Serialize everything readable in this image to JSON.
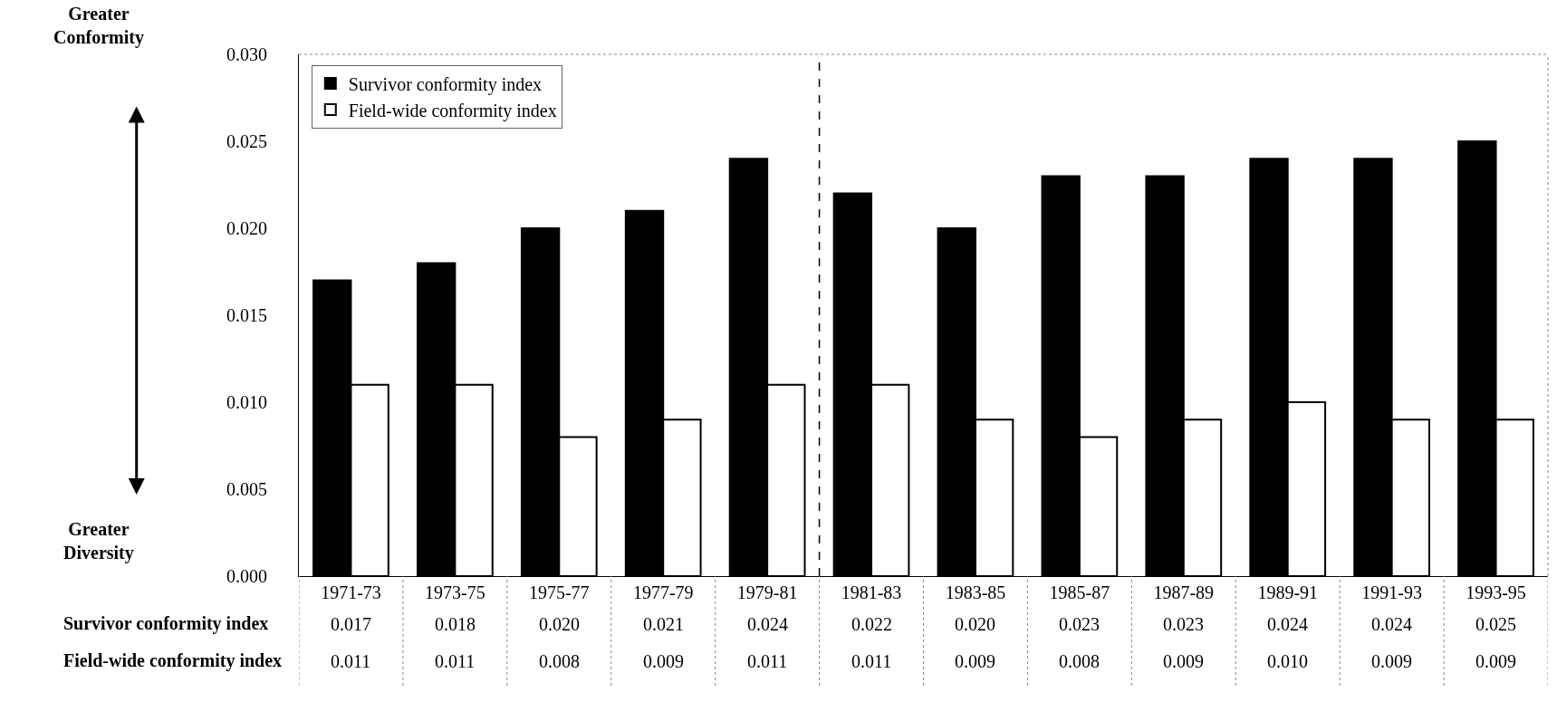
{
  "chart_data": {
    "type": "bar",
    "categories": [
      "1971-73",
      "1973-75",
      "1975-77",
      "1977-79",
      "1979-81",
      "1981-83",
      "1983-85",
      "1985-87",
      "1987-89",
      "1989-91",
      "1991-93",
      "1993-95"
    ],
    "series": [
      {
        "name": "Survivor conformity index",
        "color": "#000000",
        "values": [
          0.017,
          0.018,
          0.02,
          0.021,
          0.024,
          0.022,
          0.02,
          0.023,
          0.023,
          0.024,
          0.024,
          0.025
        ],
        "value_labels": [
          "0.017",
          "0.018",
          "0.020",
          "0.021",
          "0.024",
          "0.022",
          "0.020",
          "0.023",
          "0.023",
          "0.024",
          "0.024",
          "0.025"
        ]
      },
      {
        "name": "Field-wide conformity index",
        "color": "#ffffff",
        "values": [
          0.011,
          0.011,
          0.008,
          0.009,
          0.011,
          0.011,
          0.009,
          0.008,
          0.009,
          0.01,
          0.009,
          0.009
        ],
        "value_labels": [
          "0.011",
          "0.011",
          "0.008",
          "0.009",
          "0.011",
          "0.011",
          "0.009",
          "0.008",
          "0.009",
          "0.010",
          "0.009",
          "0.009"
        ]
      }
    ],
    "ylim": [
      0,
      0.03
    ],
    "yticks": [
      {
        "value": 0,
        "label": "0.000"
      },
      {
        "value": 0.005,
        "label": "0.005"
      },
      {
        "value": 0.01,
        "label": "0.010"
      },
      {
        "value": 0.015,
        "label": "0.015"
      },
      {
        "value": 0.02,
        "label": "0.020"
      },
      {
        "value": 0.025,
        "label": "0.025"
      },
      {
        "value": 0.03,
        "label": "0.030"
      }
    ],
    "annotations": [
      "Greater\nConformity",
      "Greater\nDiversity"
    ],
    "legend": "top left"
  }
}
